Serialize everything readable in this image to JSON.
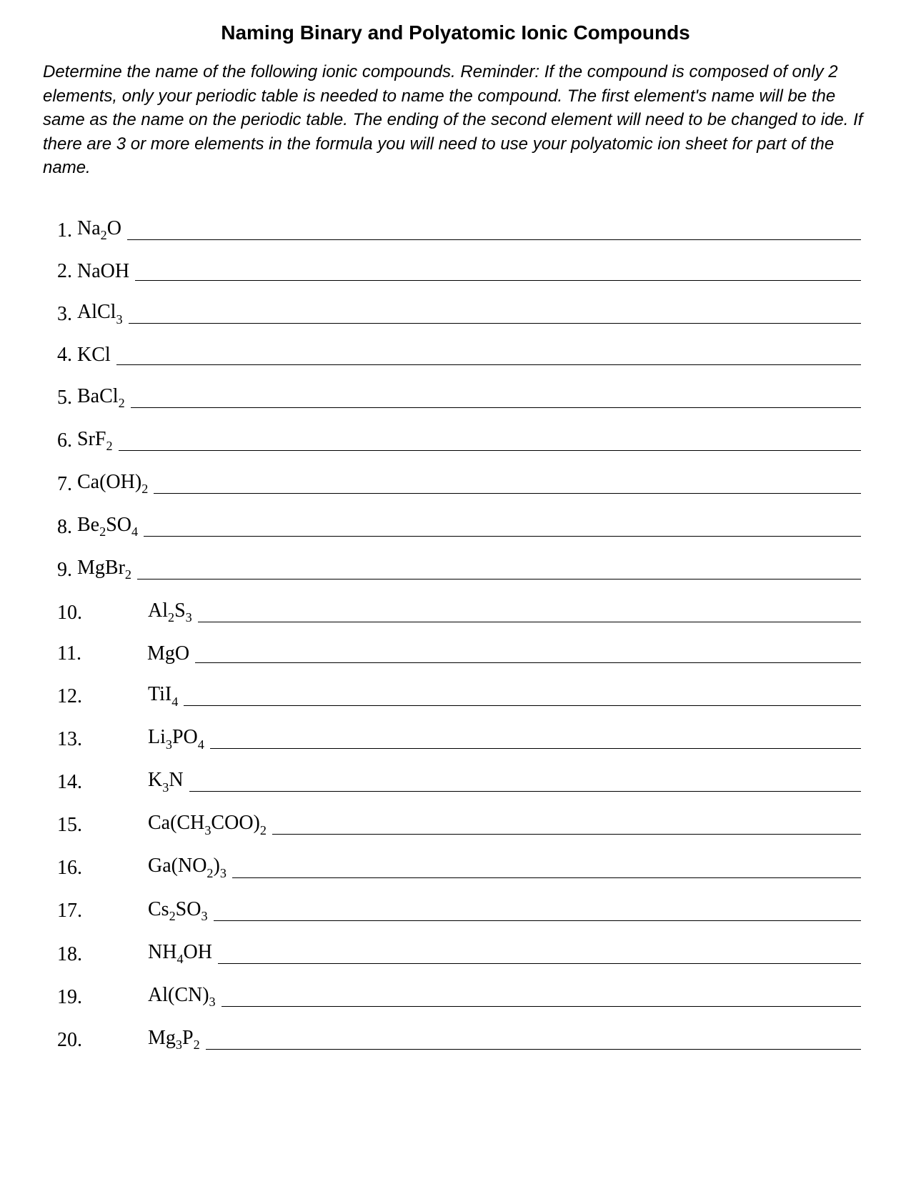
{
  "title": "Naming Binary and Polyatomic Ionic Compounds",
  "instructions": "Determine the name of the following ionic compounds.\n Reminder:  If the compound is composed of only 2 elements, only your periodic table is needed to name the compound.  The first element's name will be the same as the name on the periodic table.  The ending of the second element will need to be changed to ide.   If there are 3 or more elements in the formula you will need to use your polyatomic ion sheet for part of the name.",
  "items": [
    {
      "n": "1",
      "formula_html": "Na<span class='sub'>2</span>O",
      "indent": false
    },
    {
      "n": "2",
      "formula_html": "NaOH",
      "indent": false
    },
    {
      "n": "3",
      "formula_html": "AlCl<span class='sub'>3</span>",
      "indent": false
    },
    {
      "n": "4",
      "formula_html": "KCl ",
      "indent": false
    },
    {
      "n": "5",
      "formula_html": "BaCl<span class='sub'>2</span>",
      "indent": false
    },
    {
      "n": "6",
      "formula_html": "SrF<span class='sub'>2</span>",
      "indent": false
    },
    {
      "n": "7",
      "formula_html": "Ca(OH)<span class='sub'>2</span> ",
      "indent": false
    },
    {
      "n": "8",
      "formula_html": "Be<span class='sub'>2</span>SO<span class='sub'>4</span>",
      "indent": false
    },
    {
      "n": "9",
      "formula_html": "MgBr<span class='sub'>2</span> ",
      "indent": false
    },
    {
      "n": "10",
      "formula_html": "Al<span class='sub'>2</span>S<span class='sub'>3</span>",
      "indent": true
    },
    {
      "n": "11",
      "formula_html": "MgO ",
      "indent": true
    },
    {
      "n": "12",
      "formula_html": "TiI<span class='sub'>4</span>",
      "indent": true
    },
    {
      "n": "13",
      "formula_html": "Li<span class='sub'>3</span>PO<span class='sub'>4</span> ",
      "indent": true
    },
    {
      "n": "14",
      "formula_html": "K<span class='sub'>3</span>N ",
      "indent": true
    },
    {
      "n": "15",
      "formula_html": "Ca(CH<span class='sub'>3</span>COO)<span class='sub'>2</span> ",
      "indent": true
    },
    {
      "n": "16",
      "formula_html": "Ga(NO<span class='sub'>2</span>)<span class='sub'>3</span> ",
      "indent": true
    },
    {
      "n": "17",
      "formula_html": "Cs<span class='sub'>2</span>SO<span class='sub'>3</span>",
      "indent": true
    },
    {
      "n": "18",
      "formula_html": "NH<span class='sub'>4</span>OH ",
      "indent": true
    },
    {
      "n": "19",
      "formula_html": "Al(CN)<span class='sub'>3</span>",
      "indent": true
    },
    {
      "n": "20",
      "formula_html": "Mg<span class='sub'>3</span>P<span class='sub'>2</span>",
      "indent": true
    }
  ]
}
